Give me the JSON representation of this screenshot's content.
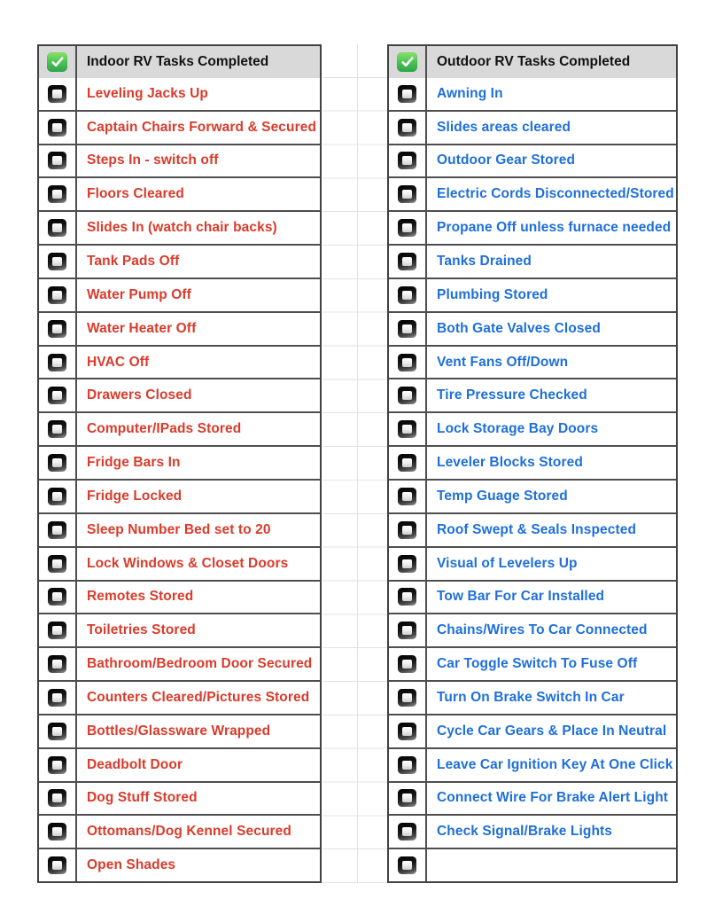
{
  "colors": {
    "header_background": "#d9d9d9",
    "table_border": "#4e4e4e",
    "indoor_text": "#d93b2b",
    "outdoor_text": "#1e6fd9",
    "faint_gridline": "#e3e3e3",
    "check_icon_green": "#3fbf4e"
  },
  "tables": [
    {
      "id": "indoor",
      "header": {
        "icon": "green-checkmark",
        "checked": true,
        "label": "Indoor RV Tasks Completed"
      },
      "text_color": "#d93b2b",
      "rows": [
        {
          "checked": false,
          "label": "Leveling Jacks Up"
        },
        {
          "checked": false,
          "label": "Captain Chairs Forward & Secured"
        },
        {
          "checked": false,
          "label": "Steps In - switch off"
        },
        {
          "checked": false,
          "label": "Floors Cleared"
        },
        {
          "checked": false,
          "label": "Slides In (watch chair backs)"
        },
        {
          "checked": false,
          "label": "Tank Pads Off"
        },
        {
          "checked": false,
          "label": "Water Pump Off"
        },
        {
          "checked": false,
          "label": "Water Heater Off"
        },
        {
          "checked": false,
          "label": "HVAC Off"
        },
        {
          "checked": false,
          "label": "Drawers Closed"
        },
        {
          "checked": false,
          "label": "Computer/IPads Stored"
        },
        {
          "checked": false,
          "label": "Fridge Bars In"
        },
        {
          "checked": false,
          "label": "Fridge Locked"
        },
        {
          "checked": false,
          "label": "Sleep Number Bed set to 20"
        },
        {
          "checked": false,
          "label": "Lock Windows & Closet Doors"
        },
        {
          "checked": false,
          "label": "Remotes Stored"
        },
        {
          "checked": false,
          "label": "Toiletries Stored"
        },
        {
          "checked": false,
          "label": "Bathroom/Bedroom Door Secured"
        },
        {
          "checked": false,
          "label": "Counters Cleared/Pictures Stored"
        },
        {
          "checked": false,
          "label": "Bottles/Glassware Wrapped"
        },
        {
          "checked": false,
          "label": "Deadbolt Door"
        },
        {
          "checked": false,
          "label": "Dog Stuff Stored"
        },
        {
          "checked": false,
          "label": "Ottomans/Dog Kennel Secured"
        },
        {
          "checked": false,
          "label": "Open Shades"
        }
      ]
    },
    {
      "id": "outdoor",
      "header": {
        "icon": "green-checkmark",
        "checked": true,
        "label": "Outdoor RV Tasks Completed"
      },
      "text_color": "#1e6fd9",
      "rows": [
        {
          "checked": false,
          "label": "Awning In"
        },
        {
          "checked": false,
          "label": "Slides areas cleared"
        },
        {
          "checked": false,
          "label": "Outdoor Gear Stored"
        },
        {
          "checked": false,
          "label": "Electric Cords Disconnected/Stored"
        },
        {
          "checked": false,
          "label": "Propane Off unless furnace needed"
        },
        {
          "checked": false,
          "label": "Tanks Drained"
        },
        {
          "checked": false,
          "label": "Plumbing Stored"
        },
        {
          "checked": false,
          "label": "Both Gate Valves Closed"
        },
        {
          "checked": false,
          "label": "Vent Fans Off/Down"
        },
        {
          "checked": false,
          "label": "Tire Pressure Checked"
        },
        {
          "checked": false,
          "label": "Lock Storage Bay Doors"
        },
        {
          "checked": false,
          "label": "Leveler Blocks Stored"
        },
        {
          "checked": false,
          "label": "Temp Guage Stored"
        },
        {
          "checked": false,
          "label": "Roof Swept & Seals Inspected"
        },
        {
          "checked": false,
          "label": "Visual of Levelers Up"
        },
        {
          "checked": false,
          "label": "Tow Bar For Car Installed"
        },
        {
          "checked": false,
          "label": "Chains/Wires To Car Connected"
        },
        {
          "checked": false,
          "label": "Car Toggle Switch To Fuse Off"
        },
        {
          "checked": false,
          "label": "Turn On Brake Switch In Car"
        },
        {
          "checked": false,
          "label": "Cycle Car Gears & Place In Neutral"
        },
        {
          "checked": false,
          "label": "Leave Car Ignition Key At One Click"
        },
        {
          "checked": false,
          "label": "Connect Wire For Brake Alert Light"
        },
        {
          "checked": false,
          "label": "Check Signal/Brake Lights"
        },
        {
          "checked": false,
          "label": ""
        }
      ]
    }
  ]
}
